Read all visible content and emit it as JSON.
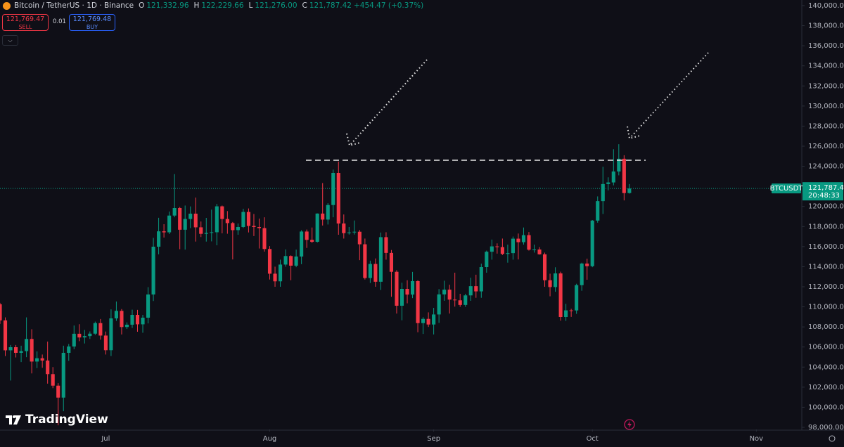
{
  "header": {
    "symbol": "Bitcoin / TetherUS · 1D · Binance",
    "o_key": "O",
    "o": "121,332.96",
    "h_key": "H",
    "h": "122,229.66",
    "l_key": "L",
    "l": "121,276.00",
    "c_key": "C",
    "c": "121,787.42",
    "change": "+454.47 (+0.37%)"
  },
  "trade": {
    "sell_price": "121,769.47",
    "sell": "SELL",
    "qty": "0.01",
    "buy_price": "121,769.48",
    "buy": "BUY"
  },
  "price_label": {
    "symbol": "BTCUSDT",
    "price": "121,787.42",
    "countdown": "20:48:33"
  },
  "watermark": "TradingView",
  "chart_data": {
    "type": "candlestick",
    "up_color": "#089981",
    "down_color": "#f23645",
    "xlim": [
      0,
      151.6
    ],
    "xticks": [
      {
        "value": 20,
        "label": "Jul"
      },
      {
        "value": 51,
        "label": "Aug"
      },
      {
        "value": 82,
        "label": "Sep"
      },
      {
        "value": 112,
        "label": "Oct"
      },
      {
        "value": 143,
        "label": "Nov"
      }
    ],
    "ylim": [
      97790,
      140000
    ],
    "yticks": [
      {
        "value": 98000,
        "label": "98,000.00"
      },
      {
        "value": 100000,
        "label": "100,000.00"
      },
      {
        "value": 102000,
        "label": "102,000.00"
      },
      {
        "value": 104000,
        "label": "104,000.00"
      },
      {
        "value": 106000,
        "label": "106,000.00"
      },
      {
        "value": 108000,
        "label": "108,000.00"
      },
      {
        "value": 110000,
        "label": "110,000.00"
      },
      {
        "value": 112000,
        "label": "112,000.00"
      },
      {
        "value": 114000,
        "label": "114,000.00"
      },
      {
        "value": 116000,
        "label": "116,000.00"
      },
      {
        "value": 118000,
        "label": "118,000.00"
      },
      {
        "value": 120000,
        "label": "120,000.00"
      },
      {
        "value": 122000,
        "label": "122,000.00"
      },
      {
        "value": 124000,
        "label": "124,000.00"
      },
      {
        "value": 126000,
        "label": "126,000.00"
      },
      {
        "value": 128000,
        "label": "128,000.00"
      },
      {
        "value": 130000,
        "label": "130,000.00"
      },
      {
        "value": 132000,
        "label": "132,000.00"
      },
      {
        "value": 134000,
        "label": "134,000.00"
      },
      {
        "value": 136000,
        "label": "136,000.00"
      },
      {
        "value": 138000,
        "label": "138,000.00"
      },
      {
        "value": 140000,
        "label": "140,000.00"
      }
    ],
    "open": [
      110260,
      108650,
      105670,
      105980,
      105420,
      105590,
      106800,
      104550,
      104880,
      104650,
      103300,
      102150,
      100960,
      105420,
      106050,
      107320,
      106950,
      107090,
      107330,
      108380,
      107140,
      105680,
      108850,
      109600,
      107990,
      108220,
      109200,
      108260,
      108920,
      111230,
      115990,
      117520,
      117420,
      119090,
      119840,
      117680,
      118750,
      119280,
      117920,
      117270,
      117360,
      117430,
      120010,
      118750,
      118340,
      117640,
      117950,
      119450,
      118060,
      117950,
      117840,
      115760,
      113300,
      112540,
      114210,
      115060,
      114100,
      115010,
      117500,
      116670,
      116480,
      119290,
      118690,
      120140,
      123340,
      118300,
      117340,
      117410,
      117480,
      116230,
      112870,
      114270,
      112500,
      116940,
      115370,
      113490,
      110110,
      111790,
      111220,
      112560,
      108380,
      108800,
      108240,
      109240,
      111240,
      111710,
      110720,
      110650,
      110190,
      111140,
      112060,
      111540,
      113960,
      115490,
      116020,
      115950,
      115270,
      115350,
      116790,
      116440,
      117140,
      115690,
      115710,
      115230,
      112650,
      111970,
      113330,
      108990,
      109650,
      109640,
      112160,
      114310,
      114050,
      118590,
      120530,
      122230,
      122390,
      123480,
      124750,
      121332.96
    ],
    "high": [
      110400,
      108950,
      106200,
      106200,
      106130,
      108950,
      107770,
      105560,
      105250,
      106540,
      104000,
      102400,
      106130,
      106300,
      108140,
      108270,
      107700,
      107550,
      108530,
      108790,
      107540,
      109750,
      110530,
      109780,
      108450,
      109720,
      109700,
      109200,
      111960,
      116870,
      118870,
      118230,
      119490,
      123220,
      119950,
      120090,
      120000,
      120880,
      118500,
      118860,
      119680,
      120250,
      120090,
      119540,
      118450,
      118300,
      119770,
      119800,
      119250,
      118790,
      118920,
      116050,
      114000,
      114700,
      115720,
      115130,
      115700,
      117630,
      117700,
      117900,
      119310,
      122330,
      120320,
      123670,
      124470,
      119200,
      117950,
      118600,
      117650,
      116800,
      114600,
      114820,
      117400,
      117430,
      115660,
      113650,
      112400,
      112650,
      113480,
      112650,
      108970,
      109450,
      109900,
      111770,
      112600,
      112200,
      113400,
      111300,
      111300,
      112900,
      113200,
      114300,
      115600,
      116700,
      116320,
      116800,
      116200,
      117000,
      117300,
      117900,
      117450,
      116200,
      115950,
      115400,
      113300,
      113940,
      113500,
      110300,
      109800,
      112300,
      114400,
      114800,
      118650,
      121000,
      123950,
      122900,
      125700,
      126200,
      125100,
      122229.66
    ],
    "low": [
      108300,
      105100,
      102660,
      104960,
      104500,
      104990,
      103370,
      103900,
      103930,
      102350,
      101900,
      98200,
      99600,
      104620,
      105780,
      106580,
      106350,
      106800,
      107200,
      106730,
      105250,
      105100,
      108600,
      107250,
      107800,
      107900,
      107520,
      107420,
      108350,
      110580,
      115230,
      116900,
      117250,
      118920,
      115740,
      115700,
      117840,
      116500,
      116950,
      116500,
      116520,
      116130,
      117320,
      117280,
      114720,
      117180,
      117850,
      117410,
      117050,
      115810,
      115500,
      112720,
      112000,
      112000,
      114000,
      112650,
      113950,
      114250,
      115870,
      116350,
      116400,
      118100,
      118200,
      118920,
      117180,
      116800,
      117200,
      117200,
      114650,
      112720,
      112380,
      112000,
      111680,
      114700,
      111000,
      109330,
      108660,
      110350,
      110870,
      107470,
      107300,
      108000,
      107250,
      108400,
      110600,
      109330,
      110020,
      110000,
      110000,
      110600,
      110900,
      110900,
      113400,
      114700,
      115300,
      115160,
      114400,
      114700,
      114720,
      116200,
      115600,
      115400,
      115200,
      112000,
      111050,
      111500,
      108620,
      108600,
      109000,
      109300,
      111600,
      112700,
      113950,
      118380,
      119250,
      121600,
      122100,
      123100,
      120600,
      121276.0
    ],
    "close": [
      108650,
      105670,
      105980,
      105420,
      105590,
      106800,
      104550,
      104880,
      104650,
      103300,
      102150,
      100960,
      105420,
      106050,
      107320,
      106950,
      107090,
      107330,
      108380,
      107140,
      105680,
      108850,
      109600,
      107990,
      108220,
      109200,
      108260,
      108920,
      111230,
      115990,
      117520,
      117420,
      119090,
      119840,
      117680,
      118750,
      119280,
      117920,
      117270,
      117360,
      117430,
      120010,
      118750,
      118340,
      117640,
      117950,
      119450,
      118060,
      117950,
      117840,
      115760,
      113300,
      112540,
      114210,
      115060,
      114100,
      115010,
      117500,
      116670,
      116480,
      119290,
      118690,
      120140,
      123340,
      118300,
      117340,
      117410,
      117480,
      116230,
      112870,
      114270,
      112500,
      116940,
      115370,
      113490,
      110110,
      111790,
      111220,
      112560,
      108380,
      108800,
      108240,
      109240,
      111240,
      111710,
      110720,
      110650,
      110190,
      111140,
      112060,
      111540,
      113960,
      115490,
      116020,
      115950,
      115270,
      115350,
      116790,
      116440,
      117140,
      115690,
      115710,
      115230,
      112650,
      111970,
      113330,
      108990,
      109650,
      109640,
      112160,
      114310,
      114050,
      118590,
      120530,
      122230,
      122390,
      123480,
      124750,
      121330,
      121787.42
    ]
  }
}
